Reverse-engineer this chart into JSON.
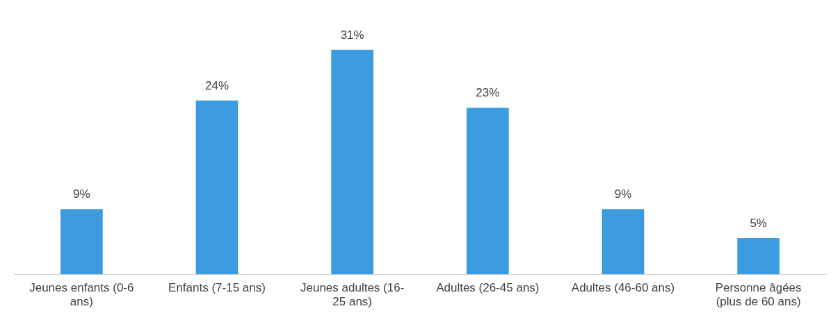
{
  "chart_data": {
    "type": "bar",
    "categories": [
      "Jeunes enfants (0-6 ans)",
      "Enfants (7-15 ans)",
      "Jeunes adultes (16-25 ans)",
      "Adultes (26-45 ans)",
      "Adultes (46-60 ans)",
      "Personne âgées (plus de 60 ans)"
    ],
    "values": [
      9,
      24,
      31,
      23,
      9,
      5
    ],
    "value_labels": [
      "9%",
      "24%",
      "31%",
      "23%",
      "9%",
      "5%"
    ],
    "color": "#3d9be0",
    "tick_labels": "x"
  }
}
